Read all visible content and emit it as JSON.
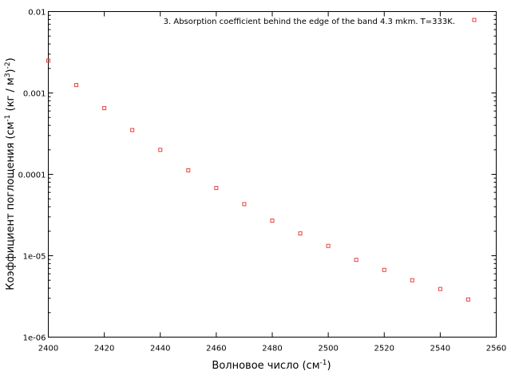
{
  "chart_data": {
    "type": "scatter",
    "series": [
      {
        "name": "3. Absorption coefficient behind the edge of the band 4.3 mkm. T=333K.",
        "color": "#e8413c",
        "marker": "square-open",
        "x": [
          2400,
          2410,
          2420,
          2430,
          2440,
          2450,
          2460,
          2470,
          2480,
          2490,
          2500,
          2510,
          2520,
          2530,
          2540,
          2550
        ],
        "y": [
          0.0025,
          0.00125,
          0.00065,
          0.00035,
          0.0002,
          0.000112,
          6.8e-05,
          4.3e-05,
          2.7e-05,
          1.88e-05,
          1.32e-05,
          8.9e-06,
          6.7e-06,
          5e-06,
          3.9e-06,
          2.9e-06
        ]
      }
    ],
    "xlabel": "Волновое число (см",
    "xlabel_sup": "-1",
    "xlabel_end": ")",
    "ylabel_parts": [
      "Коэффициент поглощения (см",
      "-1",
      " (кг / м",
      "3",
      ")",
      "-2",
      ")"
    ],
    "xlim": [
      2400,
      2560
    ],
    "ylim": [
      1e-06,
      0.01
    ],
    "yscale": "log",
    "xticks": [
      2400,
      2420,
      2440,
      2460,
      2480,
      2500,
      2520,
      2540,
      2560
    ],
    "yticks": [
      0.01,
      0.001,
      0.0001,
      1e-05,
      1e-06
    ],
    "yticklabels": [
      "0.01",
      "0.001",
      "0.0001",
      "1e-05",
      "1e-06"
    ],
    "legend_position": "top-right",
    "grid": false
  }
}
